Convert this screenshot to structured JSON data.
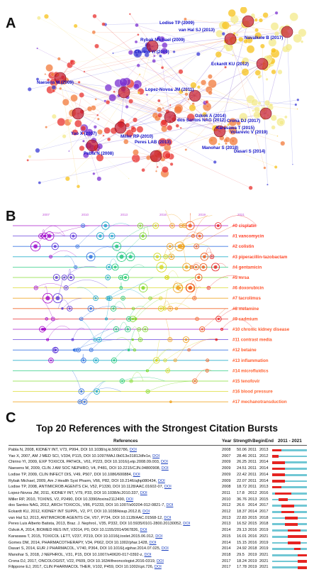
{
  "panels": {
    "a": "A",
    "b": "B",
    "c": "C"
  },
  "network": {
    "labels": [
      "Lodise TP (2009)",
      "van Hal SJ (2013)",
      "Rybak Michael (2009)",
      "Navalkele B (2017)",
      "Chirino YI (2009)",
      "Eckardt KU (2012)",
      "Naesens M (2009)",
      "Lopez-Novoa JM (2011)",
      "Ozkok A (2014)",
      "Crona DJ (2017)",
      "Karasawa T (2015)",
      "Volarevic V (2019)",
      "dos Santos NAG (2012)",
      "Yao X (2007)",
      "Miller RP (2010)",
      "Peres LAB (2013)",
      "Pabla N (2008)",
      "Dasari S (2014)",
      "Manohar S (2018)"
    ],
    "colors": [
      "#3a3ad6",
      "#7a2fd0",
      "#e8322f",
      "#f27a3a",
      "#f7c21a",
      "#f3e98a"
    ]
  },
  "timeline": {
    "years": [
      "2007",
      "2010",
      "2013",
      "2016",
      "2019",
      "2021"
    ],
    "clusters": [
      {
        "label": "#0 cisplatin",
        "color": "#ff2e1f"
      },
      {
        "label": "#1 vancomycin",
        "color": "#ff3a22"
      },
      {
        "label": "#2 colistin",
        "color": "#ff4024"
      },
      {
        "label": "#3 piperacillin-tazobactam",
        "color": "#ff4626"
      },
      {
        "label": "#4 gentamicin",
        "color": "#ff4a26"
      },
      {
        "label": "#5 mrsa",
        "color": "#ff4d28"
      },
      {
        "label": "#6 doxorubicin",
        "color": "#ff5028"
      },
      {
        "label": "#7 tacrolimus",
        "color": "#ff522a"
      },
      {
        "label": "#8 melamine",
        "color": "#ff542a"
      },
      {
        "label": "#9 cadmium",
        "color": "#ff562c"
      },
      {
        "label": "#10 chronic kidney disease",
        "color": "#ff582c"
      },
      {
        "label": "#11 contrast media",
        "color": "#ff5a2e"
      },
      {
        "label": "#12 betaine",
        "color": "#ff5c2e"
      },
      {
        "label": "#13 inflammation",
        "color": "#ff5e30"
      },
      {
        "label": "#14 microfluidics",
        "color": "#ff6030"
      },
      {
        "label": "#15 tenofovir",
        "color": "#ff6232"
      },
      {
        "label": "#16 blood pressure",
        "color": "#ff6432"
      },
      {
        "label": "#17 mechanotransduction",
        "color": "#ff6634"
      }
    ]
  },
  "bursts": {
    "title": "Top 20 References with the Strongest Citation Bursts",
    "headers": {
      "references": "References",
      "year": "Year",
      "strength": "Strength",
      "begin": "Begin",
      "end": "End",
      "range": "2011 - 2021"
    },
    "range": [
      2011,
      2021
    ],
    "colors": {
      "burst": "#e52421",
      "base": "#71c7d4"
    },
    "rows": [
      {
        "ref": "Pabla N, 2008, KIDNEY INT, V73, P994, DOI 10.1038/sj.ki.5002786, ",
        "doi": "DOI",
        "year": "2008",
        "strength": "50.06",
        "begin": "2011",
        "end": "2013",
        "b": 2011,
        "e": 2013
      },
      {
        "ref": "Yao X, 2007, AM J MED SCI, V334, P115, DOI 10.1097/MAJ.0b013e31812dfe1e, ",
        "doi": "DOI",
        "year": "2007",
        "strength": "28.46",
        "begin": "2011",
        "end": "2012",
        "b": 2011,
        "e": 2012
      },
      {
        "ref": "Chirino YI, 2009, EXP TOXICOL PATHOL, V61, P223, DOI 10.1016/j.etp.2008.09.003, ",
        "doi": "DOI",
        "year": "2009",
        "strength": "26.25",
        "begin": "2011",
        "end": "2014",
        "b": 2011,
        "e": 2014
      },
      {
        "ref": "Naesens M, 2009, CLIN J AM SOC NEPHRO, V4, P481, DOI 10.2215/CJN.04800908, ",
        "doi": "DOI",
        "year": "2009",
        "strength": "24.51",
        "begin": "2011",
        "end": "2014",
        "b": 2011,
        "e": 2014
      },
      {
        "ref": "Lodise TP, 2009, CLIN INFECT DIS, V49, P507, DOI 10.1086/600884, ",
        "doi": "DOI",
        "year": "2009",
        "strength": "22.42",
        "begin": "2011",
        "end": "2014",
        "b": 2011,
        "e": 2014
      },
      {
        "ref": "Rybak Michael, 2009, Am J Health Syst Pharm, V66, P82, DOI 10.2146/ajhp080434, ",
        "doi": "DOI",
        "year": "2009",
        "strength": "22.07",
        "begin": "2011",
        "end": "2014",
        "b": 2011,
        "e": 2014
      },
      {
        "ref": "Lodise TP, 2008, ANTIMICROB AGENTS CH, V52, P1330, DOI 10.1128/AAC.01602-07, ",
        "doi": "DOI",
        "year": "2008",
        "strength": "18.72",
        "begin": "2011",
        "end": "2013",
        "b": 2011,
        "e": 2013
      },
      {
        "ref": "Lopez-Novoa JM, 2011, KIDNEY INT, V79, P33, DOI 10.1038/ki.2010.337, ",
        "doi": "DOI",
        "year": "2011",
        "strength": "17.8",
        "begin": "2012",
        "end": "2016",
        "b": 2012,
        "e": 2016
      },
      {
        "ref": "Miller RP, 2010, TOXINS, V2, P2490, DOI 10.3390/toxins2112490, ",
        "doi": "DOI",
        "year": "2010",
        "strength": "36.76",
        "begin": "2013",
        "end": "2015",
        "b": 2013,
        "e": 2015
      },
      {
        "ref": "dos Santos NAG, 2012, ARCH TOXICOL, V86, P1233, DOI 10.1007/s00204-012-0821-7, ",
        "doi": "DOI",
        "year": "2012",
        "strength": "26.6",
        "begin": "2014",
        "end": "2017",
        "b": 2014,
        "e": 2017
      },
      {
        "ref": "Eckardt KU, 2012, KIDNEY INT SUPPL, V2, P7, DOI 10.1038/kisup.2012.8, ",
        "doi": "DOI",
        "year": "2012",
        "strength": "18.37",
        "begin": "2014",
        "end": "2017",
        "b": 2014,
        "e": 2017
      },
      {
        "ref": "van Hal SJ, 2013, ANTIMICROB AGENTS CH, V57, P734, DOI 10.1128/AAC.01568-12, ",
        "doi": "DOI",
        "year": "2013",
        "strength": "22.83",
        "begin": "2015",
        "end": "2018",
        "b": 2015,
        "e": 2018
      },
      {
        "ref": "Peres Luis Alberto Batista, 2013, Braz. J. Nephrol., V35, P332, DOI 10.5935/0101-2800.20130052, ",
        "doi": "DOI",
        "year": "2013",
        "strength": "16.52",
        "begin": "2015",
        "end": "2018",
        "b": 2015,
        "e": 2018
      },
      {
        "ref": "Ozkok A, 2014, BIOMED RES INT, V2014, P0, DOI 10.1155/2014/967826, ",
        "doi": "DOI",
        "year": "2014",
        "strength": "29.13",
        "begin": "2016",
        "end": "2019",
        "b": 2016,
        "e": 2019
      },
      {
        "ref": "Karasawa T, 2015, TOXICOL LETT, V237, P219, DOI 10.1016/j.toxlet.2015.06.012, ",
        "doi": "DOI",
        "year": "2015",
        "strength": "16.01",
        "begin": "2016",
        "end": "2021",
        "b": 2016,
        "e": 2021
      },
      {
        "ref": "Gomes DM, 2014, PHARMACOTHERAPY, V34, P662, DOI 10.1002/phar.1428, ",
        "doi": "DOI",
        "year": "2014",
        "strength": "15.15",
        "begin": "2016",
        "end": "2019",
        "b": 2016,
        "e": 2019
      },
      {
        "ref": "Dasari S, 2014, EUR J PHARMACOL, V740, P364, DOI 10.1016/j.ejphar.2014.07.025, ",
        "doi": "DOI",
        "year": "2014",
        "strength": "24.92",
        "begin": "2018",
        "end": "2019",
        "b": 2018,
        "e": 2019
      },
      {
        "ref": "Manohar S, 2018, J NEPHROL, V31, P15, DOI 10.1007/s40620-017-0392-z, ",
        "doi": "DOI",
        "year": "2018",
        "strength": "29.5",
        "begin": "2019",
        "end": "2021",
        "b": 2019,
        "e": 2021
      },
      {
        "ref": "Crona DJ, 2017, ONCOLOGIST, V22, P609, DOI 10.1634/theoncologist.2016-0319, ",
        "doi": "DOI",
        "year": "2017",
        "strength": "18.24",
        "begin": "2019",
        "end": "2021",
        "b": 2019,
        "e": 2021
      },
      {
        "ref": "Filippone EJ, 2017, CLIN PHARMACOL THER, V102, P459, DOI 10.1002/cpt.726, ",
        "doi": "DOI",
        "year": "2017",
        "strength": "17.78",
        "begin": "2019",
        "end": "2021",
        "b": 2019,
        "e": 2021
      }
    ]
  }
}
